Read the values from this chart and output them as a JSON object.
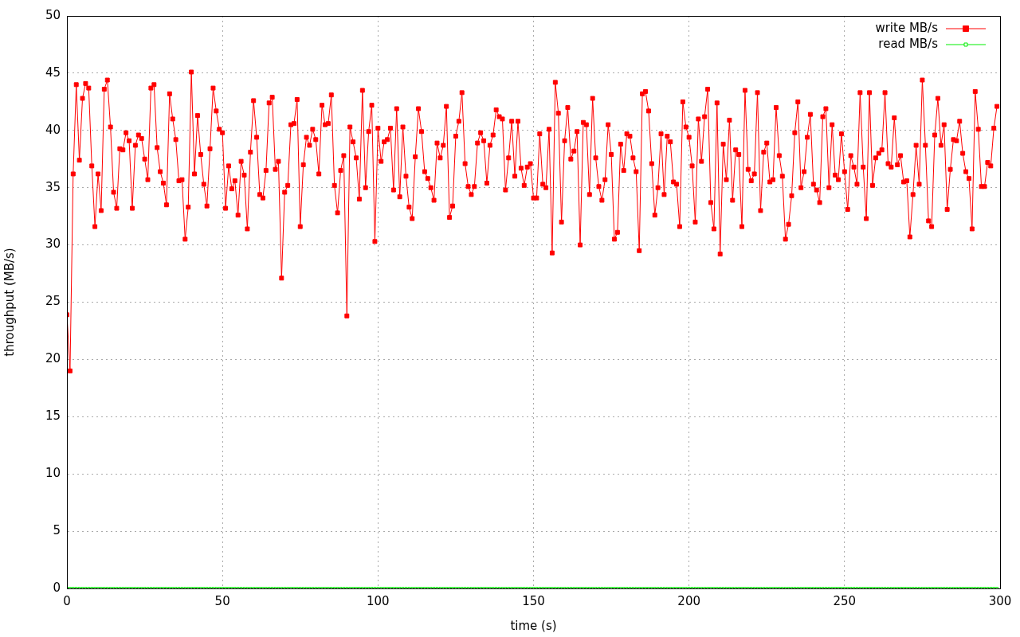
{
  "chart_data": {
    "type": "line",
    "xlabel": "time (s)",
    "ylabel": "throughput (MB/s)",
    "x": [
      0,
      1,
      2,
      3,
      4,
      5,
      6,
      7,
      8,
      9,
      10,
      11,
      12,
      13,
      14,
      15,
      16,
      17,
      18,
      19,
      20,
      21,
      22,
      23,
      24,
      25,
      26,
      27,
      28,
      29,
      30,
      31,
      32,
      33,
      34,
      35,
      36,
      37,
      38,
      39,
      40,
      41,
      42,
      43,
      44,
      45,
      46,
      47,
      48,
      49,
      50,
      51,
      52,
      53,
      54,
      55,
      56,
      57,
      58,
      59,
      60,
      61,
      62,
      63,
      64,
      65,
      66,
      67,
      68,
      69,
      70,
      71,
      72,
      73,
      74,
      75,
      76,
      77,
      78,
      79,
      80,
      81,
      82,
      83,
      84,
      85,
      86,
      87,
      88,
      89,
      90,
      91,
      92,
      93,
      94,
      95,
      96,
      97,
      98,
      99,
      100,
      101,
      102,
      103,
      104,
      105,
      106,
      107,
      108,
      109,
      110,
      111,
      112,
      113,
      114,
      115,
      116,
      117,
      118,
      119,
      120,
      121,
      122,
      123,
      124,
      125,
      126,
      127,
      128,
      129,
      130,
      131,
      132,
      133,
      134,
      135,
      136,
      137,
      138,
      139,
      140,
      141,
      142,
      143,
      144,
      145,
      146,
      147,
      148,
      149,
      150,
      151,
      152,
      153,
      154,
      155,
      156,
      157,
      158,
      159,
      160,
      161,
      162,
      163,
      164,
      165,
      166,
      167,
      168,
      169,
      170,
      171,
      172,
      173,
      174,
      175,
      176,
      177,
      178,
      179,
      180,
      181,
      182,
      183,
      184,
      185,
      186,
      187,
      188,
      189,
      190,
      191,
      192,
      193,
      194,
      195,
      196,
      197,
      198,
      199,
      200,
      201,
      202,
      203,
      204,
      205,
      206,
      207,
      208,
      209,
      210,
      211,
      212,
      213,
      214,
      215,
      216,
      217,
      218,
      219,
      220,
      221,
      222,
      223,
      224,
      225,
      226,
      227,
      228,
      229,
      230,
      231,
      232,
      233,
      234,
      235,
      236,
      237,
      238,
      239,
      240,
      241,
      242,
      243,
      244,
      245,
      246,
      247,
      248,
      249,
      250,
      251,
      252,
      253,
      254,
      255,
      256,
      257,
      258,
      259,
      260,
      261,
      262,
      263,
      264,
      265,
      266,
      267,
      268,
      269,
      270,
      271,
      272,
      273,
      274,
      275,
      276,
      277,
      278,
      279,
      280,
      281,
      282,
      283,
      284,
      285,
      286,
      287,
      288,
      289,
      290,
      291,
      292,
      293,
      294,
      295,
      296,
      297,
      298,
      299
    ],
    "series": [
      {
        "name": "write MB/s",
        "color": "#ff0000",
        "values": [
          23.9,
          19.0,
          36.2,
          44.0,
          37.4,
          42.8,
          44.1,
          43.7,
          36.9,
          31.6,
          36.2,
          33.0,
          43.6,
          44.4,
          40.3,
          34.6,
          33.2,
          38.4,
          38.3,
          39.8,
          39.1,
          33.2,
          38.7,
          39.6,
          39.3,
          37.5,
          35.7,
          43.7,
          44.0,
          38.5,
          36.4,
          35.4,
          33.5,
          43.2,
          41.0,
          39.2,
          35.6,
          35.7,
          30.5,
          33.3,
          45.1,
          36.2,
          41.3,
          37.9,
          35.3,
          33.4,
          38.4,
          43.7,
          41.7,
          40.1,
          39.8,
          33.2,
          36.9,
          34.9,
          35.6,
          32.6,
          37.3,
          36.1,
          31.4,
          38.1,
          42.6,
          39.4,
          34.4,
          34.1,
          36.5,
          42.4,
          42.9,
          36.6,
          37.3,
          27.1,
          34.6,
          35.2,
          40.5,
          40.6,
          42.7,
          31.6,
          37.0,
          39.4,
          38.7,
          40.1,
          39.2,
          36.2,
          42.2,
          40.5,
          40.6,
          43.1,
          35.2,
          32.8,
          36.5,
          37.8,
          23.8,
          40.3,
          39.0,
          37.6,
          34.0,
          43.5,
          35.0,
          39.9,
          42.2,
          30.3,
          40.2,
          37.3,
          39.0,
          39.2,
          40.2,
          34.8,
          41.9,
          34.2,
          40.3,
          36.0,
          33.3,
          32.3,
          37.7,
          41.9,
          39.9,
          36.4,
          35.8,
          35.0,
          33.9,
          38.9,
          37.6,
          38.7,
          42.1,
          32.4,
          33.4,
          39.5,
          40.8,
          43.3,
          37.1,
          35.1,
          34.4,
          35.1,
          38.9,
          39.8,
          39.1,
          35.4,
          38.7,
          39.6,
          41.8,
          41.2,
          41.0,
          34.8,
          37.6,
          40.8,
          36.0,
          40.8,
          36.7,
          35.2,
          36.8,
          37.1,
          34.1,
          34.1,
          39.7,
          35.3,
          35.0,
          40.1,
          29.3,
          44.2,
          41.5,
          32.0,
          39.1,
          42.0,
          37.5,
          38.2,
          39.9,
          30.0,
          40.7,
          40.5,
          34.4,
          42.8,
          37.6,
          35.1,
          33.9,
          35.7,
          40.5,
          37.9,
          30.5,
          31.1,
          38.8,
          36.5,
          39.7,
          39.5,
          37.6,
          36.4,
          29.5,
          43.2,
          43.4,
          41.7,
          37.1,
          32.6,
          35.0,
          39.7,
          34.4,
          39.5,
          39.0,
          35.5,
          35.3,
          31.6,
          42.5,
          40.3,
          39.4,
          36.9,
          32.0,
          41.0,
          37.3,
          41.2,
          43.6,
          33.7,
          31.4,
          42.4,
          29.2,
          38.8,
          35.7,
          40.9,
          33.9,
          38.3,
          37.9,
          31.6,
          43.5,
          36.6,
          35.6,
          36.2,
          43.3,
          33.0,
          38.1,
          38.9,
          35.5,
          35.7,
          42.0,
          37.8,
          36.0,
          30.5,
          31.8,
          34.3,
          39.8,
          42.5,
          35.0,
          36.4,
          39.4,
          41.4,
          35.3,
          34.8,
          33.7,
          41.2,
          41.9,
          35.0,
          40.5,
          36.1,
          35.7,
          39.7,
          36.4,
          33.1,
          37.8,
          36.8,
          35.3,
          43.3,
          36.8,
          32.3,
          43.3,
          35.2,
          37.6,
          38.0,
          38.3,
          43.3,
          37.1,
          36.8,
          41.1,
          37.0,
          37.8,
          35.5,
          35.6,
          30.7,
          34.4,
          38.7,
          35.3,
          44.4,
          38.7,
          32.1,
          31.6,
          39.6,
          42.8,
          38.7,
          40.5,
          33.1,
          36.6,
          39.2,
          39.1,
          40.8,
          38.0,
          36.4,
          35.8,
          31.4,
          43.4,
          40.1,
          35.1,
          35.1,
          37.2,
          36.9,
          40.2,
          42.1
        ]
      },
      {
        "name": "read MB/s",
        "color": "#00ee00",
        "values": [
          0,
          0,
          0,
          0,
          0,
          0,
          0,
          0,
          0,
          0,
          0,
          0,
          0,
          0,
          0,
          0,
          0,
          0,
          0,
          0,
          0,
          0,
          0,
          0,
          0,
          0,
          0,
          0,
          0,
          0,
          0,
          0,
          0,
          0,
          0,
          0,
          0,
          0,
          0,
          0,
          0,
          0,
          0,
          0,
          0,
          0,
          0,
          0,
          0,
          0,
          0,
          0,
          0,
          0,
          0,
          0,
          0,
          0,
          0,
          0,
          0,
          0,
          0,
          0,
          0,
          0,
          0,
          0,
          0,
          0,
          0,
          0,
          0,
          0,
          0,
          0,
          0,
          0,
          0,
          0,
          0,
          0,
          0,
          0,
          0,
          0,
          0,
          0,
          0,
          0,
          0,
          0,
          0,
          0,
          0,
          0,
          0,
          0,
          0,
          0,
          0,
          0,
          0,
          0,
          0,
          0,
          0,
          0,
          0,
          0,
          0,
          0,
          0,
          0,
          0,
          0,
          0,
          0,
          0,
          0,
          0,
          0,
          0,
          0,
          0,
          0,
          0,
          0,
          0,
          0,
          0,
          0,
          0,
          0,
          0,
          0,
          0,
          0,
          0,
          0,
          0,
          0,
          0,
          0,
          0,
          0,
          0,
          0,
          0,
          0,
          0,
          0,
          0,
          0,
          0,
          0,
          0,
          0,
          0,
          0,
          0,
          0,
          0,
          0,
          0,
          0,
          0,
          0,
          0,
          0,
          0,
          0,
          0,
          0,
          0,
          0,
          0,
          0,
          0,
          0,
          0,
          0,
          0,
          0,
          0,
          0,
          0,
          0,
          0,
          0,
          0,
          0,
          0,
          0,
          0,
          0,
          0,
          0,
          0,
          0,
          0,
          0,
          0,
          0,
          0,
          0,
          0,
          0,
          0,
          0,
          0,
          0,
          0,
          0,
          0,
          0,
          0,
          0,
          0,
          0,
          0,
          0,
          0,
          0,
          0,
          0,
          0,
          0,
          0,
          0,
          0,
          0,
          0,
          0,
          0,
          0,
          0,
          0,
          0,
          0,
          0,
          0,
          0,
          0,
          0,
          0,
          0,
          0,
          0,
          0,
          0,
          0,
          0,
          0,
          0,
          0,
          0,
          0,
          0,
          0,
          0,
          0,
          0,
          0,
          0,
          0,
          0,
          0,
          0,
          0,
          0,
          0,
          0,
          0,
          0,
          0,
          0,
          0,
          0,
          0,
          0,
          0,
          0,
          0,
          0,
          0,
          0,
          0,
          0,
          0,
          0,
          0,
          0,
          0,
          0,
          0,
          0,
          0,
          0,
          0
        ]
      }
    ],
    "xlim": [
      0,
      300
    ],
    "xticks": [
      0,
      50,
      100,
      150,
      200,
      250,
      300
    ],
    "ylim": [
      0,
      50
    ],
    "yticks": [
      0,
      5,
      10,
      15,
      20,
      25,
      30,
      35,
      40,
      45,
      50
    ],
    "grid": true,
    "legend": "top right",
    "marker": "square",
    "line_style": "solid"
  }
}
